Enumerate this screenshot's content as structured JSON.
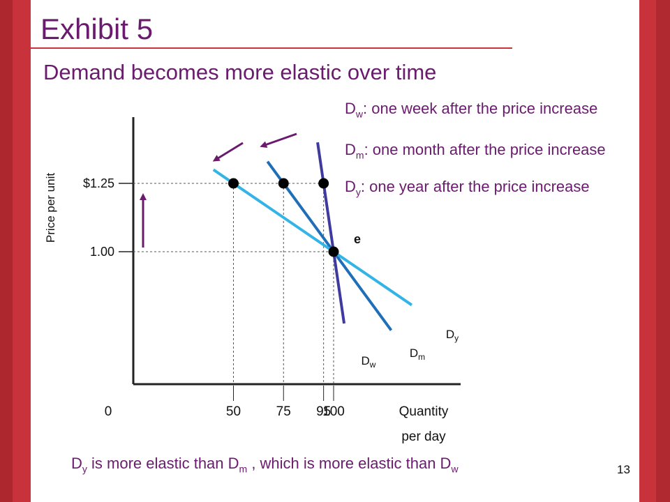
{
  "slide": {
    "title": "Exhibit 5",
    "subtitle": "Demand becomes more elastic over time",
    "page_number": "13"
  },
  "legend": [
    {
      "letter": "D",
      "sub": "w",
      "text": ": one week after the price increase"
    },
    {
      "letter": "D",
      "sub": "m",
      "text": ": one month after the price increase"
    },
    {
      "letter": "D",
      "sub": "y",
      "text": ": one year after the price increase"
    }
  ],
  "conclusion": {
    "p1": "D",
    "s1": "y",
    "p2": " is more elastic than D",
    "s2": "m",
    "p3": " , which is more elastic than D",
    "s3": "w"
  },
  "colors": {
    "title": "#6a1b6e",
    "axis": "#222222",
    "Dw": "#3f3a9e",
    "Dm": "#1f6fb8",
    "Dy": "#33b4e6",
    "arrow": "#6a1b6e",
    "guide": "#555555"
  },
  "chart_data": {
    "type": "line",
    "ylabel": "Price per unit",
    "xlabel": [
      "Quantity",
      "per day"
    ],
    "x_ticks": [
      {
        "value": 0,
        "label": "0"
      },
      {
        "value": 50,
        "label": "50"
      },
      {
        "value": 75,
        "label": "75"
      },
      {
        "value": 95,
        "label": "95"
      },
      {
        "value": 100,
        "label": "100"
      }
    ],
    "y_ticks": [
      {
        "value": 1.25,
        "label": "$1.25"
      },
      {
        "value": 1.0,
        "label": "1.00"
      }
    ],
    "series": [
      {
        "name": "Dw",
        "letter": "D",
        "sub": "w",
        "color": "#3f3a9e",
        "points": [
          {
            "q": 95,
            "p": 1.25
          },
          {
            "q": 100,
            "p": 1.0
          }
        ]
      },
      {
        "name": "Dm",
        "letter": "D",
        "sub": "m",
        "color": "#1f6fb8",
        "points": [
          {
            "q": 75,
            "p": 1.25
          },
          {
            "q": 100,
            "p": 1.0
          }
        ]
      },
      {
        "name": "Dy",
        "letter": "D",
        "sub": "y",
        "color": "#33b4e6",
        "points": [
          {
            "q": 50,
            "p": 1.25
          },
          {
            "q": 100,
            "p": 1.0
          }
        ]
      }
    ],
    "equilibrium": {
      "label": "e",
      "q": 100,
      "p": 1.0
    },
    "annotations": [
      "price rises from 1.00 to $1.25",
      "quantity demanded falls more over time"
    ]
  }
}
